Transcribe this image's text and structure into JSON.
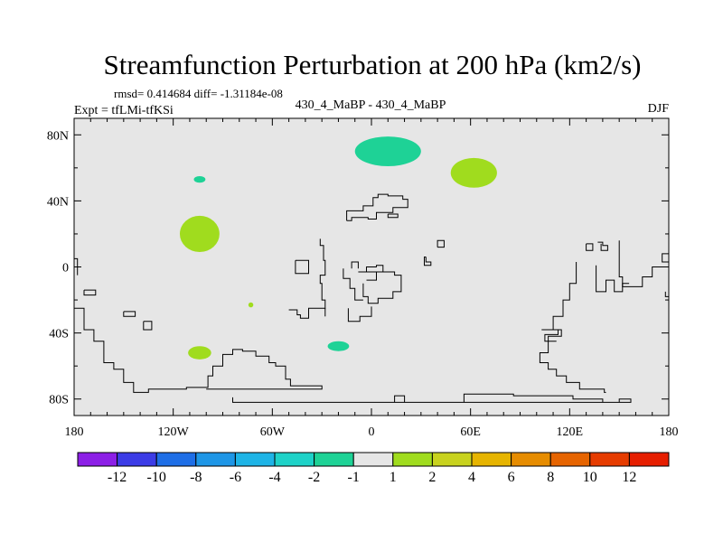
{
  "chart_data": {
    "type": "heatmap",
    "title": "Streamfunction Perturbation at 200 hPa (km2/s)",
    "stats": "rmsd= 0.414684 diff= -1.31184e-08",
    "experiment": "Expt = tfLMi-tfKSi",
    "subtitle": "430_4_MaBP - 430_4_MaBP",
    "season": "DJF",
    "x_range": [
      -180,
      180
    ],
    "y_range": [
      -90,
      90
    ],
    "x_ticks": [
      {
        "value": -180,
        "label": "180"
      },
      {
        "value": -120,
        "label": "120W"
      },
      {
        "value": -60,
        "label": "60W"
      },
      {
        "value": 0,
        "label": "0"
      },
      {
        "value": 60,
        "label": "60E"
      },
      {
        "value": 120,
        "label": "120E"
      },
      {
        "value": 180,
        "label": "180"
      }
    ],
    "y_ticks": [
      {
        "value": 80,
        "label": "80N"
      },
      {
        "value": 40,
        "label": "40N"
      },
      {
        "value": 0,
        "label": "0"
      },
      {
        "value": -40,
        "label": "40S"
      },
      {
        "value": -80,
        "label": "80S"
      }
    ],
    "background_color": "#e6e6e6",
    "colorbar": {
      "colors": [
        "#8c1fe6",
        "#3c3ce6",
        "#1e6ee6",
        "#1e96e6",
        "#1eb4e6",
        "#1ed2c8",
        "#1ed296",
        "#e6e6e6",
        "#a0dc1e",
        "#c8d21e",
        "#e6b400",
        "#e68c00",
        "#e66400",
        "#e63c00",
        "#e61e00"
      ],
      "labels": [
        "-12",
        "-10",
        "-8",
        "-6",
        "-4",
        "-2",
        "-1",
        "1",
        "2",
        "4",
        "6",
        "8",
        "10",
        "12"
      ]
    },
    "anomalies": [
      {
        "lon": 10,
        "lat": 70,
        "rlon": 20,
        "rlat": 9,
        "level": "-1 to -2",
        "color": "#1ed296"
      },
      {
        "lon": 62,
        "lat": 57,
        "rlon": 14,
        "rlat": 9,
        "level": "1 to 2",
        "color": "#a0dc1e"
      },
      {
        "lon": -104,
        "lat": 20,
        "rlon": 12,
        "rlat": 11,
        "level": "1 to 2",
        "color": "#a0dc1e"
      },
      {
        "lon": -104,
        "lat": -52,
        "rlon": 7,
        "rlat": 4,
        "level": "1 to 2",
        "color": "#a0dc1e"
      },
      {
        "lon": -20,
        "lat": -48,
        "rlon": 6.5,
        "rlat": 3,
        "level": "-1 to -2",
        "color": "#1ed296"
      },
      {
        "lon": -104,
        "lat": 53,
        "rlon": 3.5,
        "rlat": 2,
        "level": "-1 to -2",
        "color": "#1ed296"
      },
      {
        "lon": -73,
        "lat": -23,
        "rlon": 1.5,
        "rlat": 1.5,
        "level": "1 to 2",
        "color": "#a0dc1e"
      }
    ],
    "coastlines": [
      [
        [
          -180,
          -25
        ],
        [
          -174,
          -25
        ],
        [
          -174,
          -38
        ],
        [
          -168,
          -38
        ],
        [
          -168,
          -45
        ],
        [
          -162,
          -45
        ],
        [
          -162,
          -58
        ],
        [
          -156,
          -58
        ],
        [
          -156,
          -62
        ],
        [
          -150,
          -62
        ],
        [
          -150,
          -70
        ],
        [
          -144,
          -70
        ],
        [
          -144,
          -76
        ],
        [
          -135,
          -76
        ],
        [
          -135,
          -74
        ],
        [
          -112,
          -74
        ],
        [
          -112,
          -73
        ],
        [
          -99,
          -73
        ],
        [
          -99,
          -66
        ],
        [
          -96,
          -66
        ],
        [
          -96,
          -60
        ],
        [
          -90,
          -60
        ],
        [
          -90,
          -53
        ],
        [
          -84,
          -53
        ],
        [
          -84,
          -50
        ],
        [
          -78,
          -50
        ],
        [
          -78,
          -51
        ],
        [
          -70,
          -51
        ],
        [
          -70,
          -54
        ],
        [
          -62,
          -54
        ],
        [
          -62,
          -58
        ],
        [
          -58,
          -58
        ],
        [
          -58,
          -60
        ],
        [
          -52,
          -60
        ],
        [
          -52,
          -68
        ],
        [
          -49,
          -68
        ],
        [
          -49,
          -72
        ],
        [
          -30,
          -72
        ],
        [
          -30,
          -74
        ],
        [
          -100,
          -74
        ]
      ],
      [
        [
          -180,
          5
        ],
        [
          -178,
          5
        ],
        [
          -178,
          -5
        ]
      ],
      [
        [
          -174,
          -14
        ],
        [
          -167,
          -14
        ],
        [
          -167,
          -17
        ],
        [
          -174,
          -17
        ],
        [
          -174,
          -14
        ]
      ],
      [
        [
          -150,
          -27
        ],
        [
          -143,
          -27
        ],
        [
          -143,
          -30
        ],
        [
          -150,
          -30
        ],
        [
          -150,
          -27
        ]
      ],
      [
        [
          -138,
          -33
        ],
        [
          -133,
          -33
        ],
        [
          -133,
          -38
        ],
        [
          -138,
          -38
        ],
        [
          -138,
          -33
        ]
      ],
      [
        [
          -84,
          -79
        ],
        [
          -84,
          -82
        ],
        [
          14,
          -82
        ],
        [
          14,
          -78
        ],
        [
          20,
          -78
        ],
        [
          20,
          -82
        ],
        [
          56,
          -82
        ],
        [
          56,
          -77
        ],
        [
          86,
          -77
        ],
        [
          86,
          -78
        ],
        [
          122,
          -78
        ],
        [
          122,
          -80
        ],
        [
          140,
          -80
        ],
        [
          140,
          -82
        ],
        [
          150,
          -82
        ],
        [
          150,
          -80
        ],
        [
          157,
          -80
        ],
        [
          157,
          -82
        ],
        [
          -84,
          -82
        ]
      ],
      [
        [
          -15,
          28
        ],
        [
          -15,
          34
        ],
        [
          -5,
          34
        ],
        [
          -5,
          37
        ],
        [
          1,
          37
        ],
        [
          1,
          42
        ],
        [
          4,
          42
        ],
        [
          4,
          44
        ],
        [
          10,
          44
        ],
        [
          10,
          43
        ],
        [
          19,
          43
        ],
        [
          19,
          41
        ],
        [
          22,
          41
        ],
        [
          22,
          36
        ],
        [
          13,
          36
        ],
        [
          13,
          33
        ],
        [
          3,
          33
        ],
        [
          3,
          29
        ],
        [
          -2,
          29
        ],
        [
          -2,
          30
        ],
        [
          -12,
          30
        ],
        [
          -12,
          28
        ],
        [
          -15,
          28
        ]
      ],
      [
        [
          10,
          32
        ],
        [
          16,
          32
        ],
        [
          16,
          30
        ],
        [
          10,
          30
        ],
        [
          10,
          32
        ]
      ],
      [
        [
          -31,
          17
        ],
        [
          -31,
          13
        ],
        [
          -29,
          13
        ],
        [
          -29,
          4
        ],
        [
          -28,
          4
        ],
        [
          -28,
          -5
        ],
        [
          -31,
          -5
        ],
        [
          -31,
          -10
        ],
        [
          -30,
          -10
        ],
        [
          -30,
          -20
        ],
        [
          -28,
          -20
        ],
        [
          -28,
          -25
        ],
        [
          -38,
          -25
        ],
        [
          -38,
          -31
        ],
        [
          -43,
          -31
        ],
        [
          -43,
          -29
        ],
        [
          -45,
          -29
        ],
        [
          -45,
          -26
        ],
        [
          -50,
          -26
        ]
      ],
      [
        [
          -28,
          -30
        ],
        [
          -28,
          -25
        ]
      ],
      [
        [
          -14,
          -25
        ],
        [
          -14,
          -33
        ],
        [
          -7,
          -33
        ],
        [
          -7,
          -30
        ],
        [
          0,
          -30
        ],
        [
          0,
          -24
        ]
      ],
      [
        [
          -46,
          4
        ],
        [
          -46,
          -4
        ],
        [
          -38,
          -4
        ],
        [
          -38,
          4
        ],
        [
          -46,
          4
        ]
      ],
      [
        [
          -8,
          -3
        ],
        [
          -3,
          -3
        ],
        [
          -3,
          0
        ],
        [
          3,
          0
        ],
        [
          3,
          1
        ],
        [
          7,
          1
        ],
        [
          7,
          -3
        ],
        [
          3,
          -3
        ],
        [
          3,
          -8
        ],
        [
          -3,
          -8
        ]
      ],
      [
        [
          -5,
          -10
        ],
        [
          -5,
          -18
        ],
        [
          -2,
          -18
        ],
        [
          -2,
          -22
        ],
        [
          4,
          -22
        ],
        [
          4,
          -19
        ],
        [
          13,
          -19
        ],
        [
          13,
          -15
        ],
        [
          18,
          -15
        ],
        [
          18,
          -5
        ],
        [
          14,
          -5
        ],
        [
          14,
          -3
        ],
        [
          -3,
          -3
        ]
      ],
      [
        [
          -17,
          -1
        ],
        [
          -17,
          -7
        ],
        [
          -13,
          -7
        ],
        [
          -13,
          -13
        ],
        [
          -10,
          -13
        ],
        [
          -10,
          -20
        ],
        [
          -5,
          -20
        ]
      ],
      [
        [
          -8,
          -1
        ],
        [
          -8,
          3
        ],
        [
          -12,
          3
        ],
        [
          -12,
          -1
        ]
      ],
      [
        [
          40,
          12
        ],
        [
          40,
          16
        ],
        [
          44,
          16
        ],
        [
          44,
          12
        ],
        [
          40,
          12
        ]
      ],
      [
        [
          33,
          6
        ],
        [
          33,
          3
        ],
        [
          36,
          3
        ],
        [
          36,
          1
        ],
        [
          32,
          1
        ],
        [
          32,
          6
        ],
        [
          33,
          6
        ]
      ],
      [
        [
          130,
          14
        ],
        [
          130,
          10
        ],
        [
          134,
          10
        ],
        [
          134,
          14
        ],
        [
          130,
          14
        ]
      ],
      [
        [
          136,
          1
        ],
        [
          136,
          -15
        ],
        [
          142,
          -15
        ],
        [
          142,
          -8
        ],
        [
          147,
          -8
        ],
        [
          147,
          -15
        ],
        [
          152,
          -15
        ],
        [
          152,
          -10
        ],
        [
          156,
          -10
        ]
      ],
      [
        [
          124,
          3
        ],
        [
          124,
          -10
        ],
        [
          120,
          -10
        ],
        [
          120,
          -20
        ],
        [
          116,
          -20
        ],
        [
          116,
          -30
        ],
        [
          110,
          -30
        ],
        [
          110,
          -38
        ],
        [
          115,
          -38
        ],
        [
          115,
          -42
        ],
        [
          107,
          -42
        ],
        [
          107,
          -52
        ],
        [
          102,
          -52
        ],
        [
          102,
          -58
        ],
        [
          107,
          -58
        ],
        [
          107,
          -62
        ],
        [
          112,
          -62
        ],
        [
          112,
          -66
        ],
        [
          118,
          -66
        ],
        [
          118,
          -70
        ],
        [
          126,
          -70
        ],
        [
          126,
          -74
        ],
        [
          141,
          -74
        ],
        [
          141,
          -76
        ],
        [
          142,
          -76
        ]
      ],
      [
        [
          150,
          16
        ],
        [
          150,
          -6
        ],
        [
          152,
          -6
        ],
        [
          152,
          -12
        ],
        [
          164,
          -12
        ],
        [
          164,
          -6
        ],
        [
          170,
          -6
        ],
        [
          170,
          0
        ],
        [
          180,
          0
        ]
      ],
      [
        [
          180,
          3
        ],
        [
          176,
          3
        ],
        [
          176,
          8
        ],
        [
          180,
          8
        ]
      ],
      [
        [
          178,
          -15
        ],
        [
          178,
          -18
        ],
        [
          180,
          -18
        ]
      ],
      [
        [
          137,
          15
        ],
        [
          140,
          15
        ],
        [
          140,
          13
        ],
        [
          143,
          13
        ],
        [
          143,
          10
        ],
        [
          139,
          10
        ],
        [
          139,
          14
        ]
      ],
      [
        [
          103,
          -38
        ],
        [
          113,
          -38
        ],
        [
          113,
          -41
        ],
        [
          105,
          -41
        ],
        [
          105,
          -45
        ],
        [
          112,
          -45
        ]
      ]
    ]
  }
}
